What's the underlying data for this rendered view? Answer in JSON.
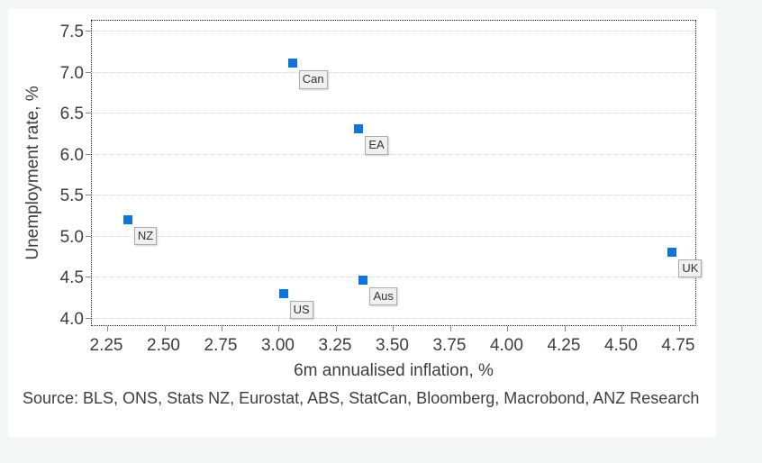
{
  "colors": {
    "page_background": "#f5f6f6",
    "panel_background": "#ffffff",
    "marker_blue": "#1174d9",
    "text": "#3d3d3d",
    "gridline": "#d7d7d7",
    "plot_border": "#1c1c1c",
    "label_box_background": "#f0f0f0",
    "label_box_border": "#acacac"
  },
  "chart_data": {
    "type": "scatter",
    "title": "",
    "xlabel": "6m annualised inflation, %",
    "ylabel": "Unemployment rate, %",
    "xlim": [
      2.183,
      4.829
    ],
    "ylim": [
      3.89,
      7.62
    ],
    "grid": "horizontal-dotted",
    "legend": "none",
    "marker": "square",
    "marker_color": "#1174d9",
    "x_ticks": [
      {
        "value": 2.25,
        "label": "2.25"
      },
      {
        "value": 2.5,
        "label": "2.50"
      },
      {
        "value": 2.75,
        "label": "2.75"
      },
      {
        "value": 3.0,
        "label": "3.00"
      },
      {
        "value": 3.25,
        "label": "3.25"
      },
      {
        "value": 3.5,
        "label": "3.50"
      },
      {
        "value": 3.75,
        "label": "3.75"
      },
      {
        "value": 4.0,
        "label": "4.00"
      },
      {
        "value": 4.25,
        "label": "4.25"
      },
      {
        "value": 4.5,
        "label": "4.50"
      },
      {
        "value": 4.75,
        "label": "4.75"
      }
    ],
    "y_ticks": [
      {
        "value": 4.0,
        "label": "4.0"
      },
      {
        "value": 4.5,
        "label": "4.5"
      },
      {
        "value": 5.0,
        "label": "5.0"
      },
      {
        "value": 5.5,
        "label": "5.5"
      },
      {
        "value": 6.0,
        "label": "6.0"
      },
      {
        "value": 6.5,
        "label": "6.5"
      },
      {
        "value": 7.0,
        "label": "7.0"
      },
      {
        "value": 7.5,
        "label": "7.5"
      }
    ],
    "points": [
      {
        "label": "Can",
        "x": 3.06,
        "y": 7.1
      },
      {
        "label": "EA",
        "x": 3.35,
        "y": 6.3
      },
      {
        "label": "NZ",
        "x": 2.34,
        "y": 5.2
      },
      {
        "label": "UK",
        "x": 4.72,
        "y": 4.8
      },
      {
        "label": "Aus",
        "x": 3.37,
        "y": 4.46
      },
      {
        "label": "US",
        "x": 3.02,
        "y": 4.3
      }
    ]
  },
  "source": {
    "text": "Source: BLS, ONS, Stats NZ, Eurostat, ABS, StatCan, Bloomberg, Macrobond, ANZ Research"
  }
}
